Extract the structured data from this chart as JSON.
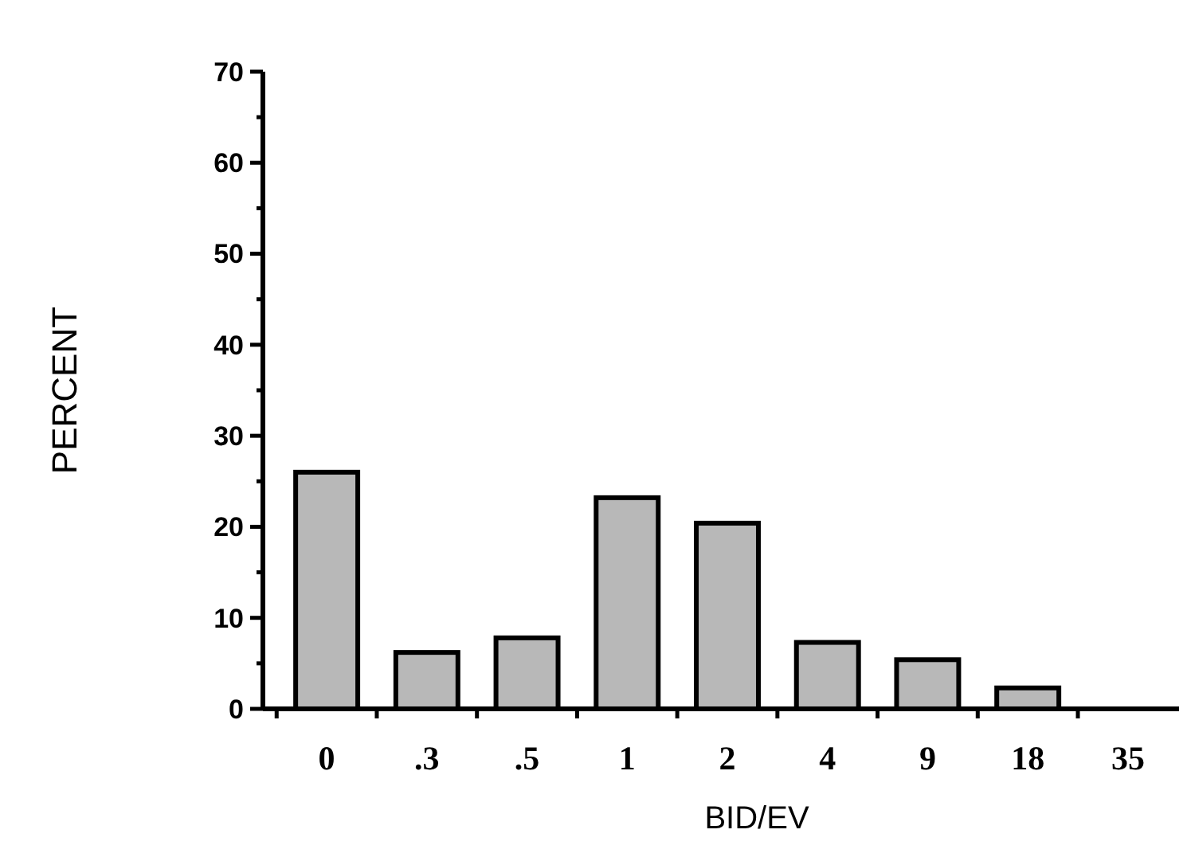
{
  "chart_data": {
    "type": "bar",
    "xlabel": "BID/EV",
    "ylabel": "PERCENT",
    "categories": [
      "0",
      ".3",
      ".5",
      "1",
      "2",
      "4",
      "9",
      "18",
      "35"
    ],
    "values": [
      26,
      6.2,
      7.8,
      23.2,
      20.4,
      7.3,
      5.4,
      2.3,
      0
    ],
    "color": "#b8b8b8",
    "ylim": [
      0,
      70
    ],
    "yticks": [
      0,
      {
        "value": 5,
        "label": null
      },
      10,
      {
        "value": 15,
        "label": null
      },
      20,
      {
        "value": 25,
        "label": null
      },
      30,
      {
        "value": 35,
        "label": null
      },
      40,
      {
        "value": 45,
        "label": null
      },
      50,
      {
        "value": 55,
        "label": null
      },
      60,
      {
        "value": 65,
        "label": null
      },
      70
    ],
    "grid": false
  }
}
